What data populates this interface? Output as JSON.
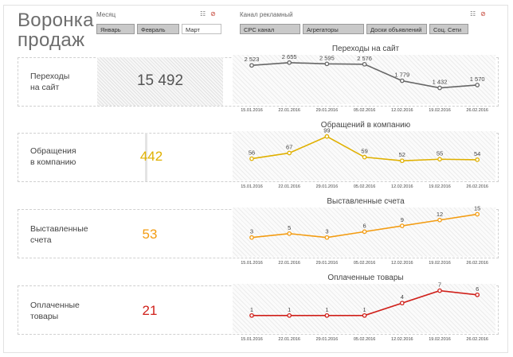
{
  "page_title_line1": "Воронка",
  "page_title_line2": "продаж",
  "filters": {
    "month": {
      "label": "Месяц",
      "options": [
        "Январь",
        "Февраль",
        "Март"
      ],
      "selected": "Март"
    },
    "channel": {
      "label": "Канал рекламный",
      "options": [
        "CPC канал",
        "Агрегаторы",
        "Доски объявлений",
        "Соц. Сети"
      ]
    }
  },
  "funnel": [
    {
      "label_line1": "Переходы",
      "label_line2": "на сайт",
      "value": "15 492",
      "value_color": "#555555"
    },
    {
      "label_line1": "Обращения",
      "label_line2": "в компанию",
      "value": "442",
      "value_color": "#e0b000"
    },
    {
      "label_line1": "Выставленные",
      "label_line2": "счета",
      "value": "53",
      "value_color": "#f39c12"
    },
    {
      "label_line1": "Оплаченные",
      "label_line2": "товары",
      "value": "21",
      "value_color": "#d0201a"
    }
  ],
  "chart_data": [
    {
      "type": "line",
      "title": "Переходы на сайт",
      "x": [
        "15.01.2016",
        "22.01.2016",
        "29.01.2016",
        "05.02.2016",
        "12.02.2016",
        "19.02.2016",
        "26.02.2016"
      ],
      "values": [
        2523,
        2655,
        2595,
        2576,
        1779,
        1432,
        1570
      ],
      "labels": [
        "2 523",
        "2 655",
        "2 595",
        "2 576",
        "1 779",
        "1 432",
        "1 570"
      ],
      "color": "#666666",
      "ylim": [
        1300,
        2800
      ]
    },
    {
      "type": "line",
      "title": "Обращений в компанию",
      "x": [
        "15.01.2016",
        "22.01.2016",
        "29.01.2016",
        "05.02.2016",
        "12.02.2016",
        "19.02.2016",
        "26.02.2016"
      ],
      "values": [
        56,
        67,
        99,
        59,
        52,
        55,
        54
      ],
      "labels": [
        "56",
        "67",
        "99",
        "59",
        "52",
        "55",
        "54"
      ],
      "color": "#e0b000",
      "ylim": [
        40,
        100
      ]
    },
    {
      "type": "line",
      "title": "Выставленные счета",
      "x": [
        "15.01.2016",
        "22.01.2016",
        "29.01.2016",
        "05.02.2016",
        "12.02.2016",
        "19.02.2016",
        "26.02.2016"
      ],
      "values": [
        3,
        5,
        3,
        6,
        9,
        12,
        15
      ],
      "labels": [
        "3",
        "5",
        "3",
        "6",
        "9",
        "12",
        "15"
      ],
      "color": "#f39c12",
      "ylim": [
        0,
        16
      ]
    },
    {
      "type": "line",
      "title": "Оплаченные товары",
      "x": [
        "15.01.2016",
        "22.01.2016",
        "29.01.2016",
        "05.02.2016",
        "12.02.2016",
        "19.02.2016",
        "26.02.2016"
      ],
      "values": [
        1,
        1,
        1,
        1,
        4,
        7,
        6
      ],
      "labels": [
        "1",
        "1",
        "1",
        "1",
        "4",
        "7",
        "6"
      ],
      "color": "#d0201a",
      "ylim": [
        0,
        7.5
      ]
    }
  ]
}
